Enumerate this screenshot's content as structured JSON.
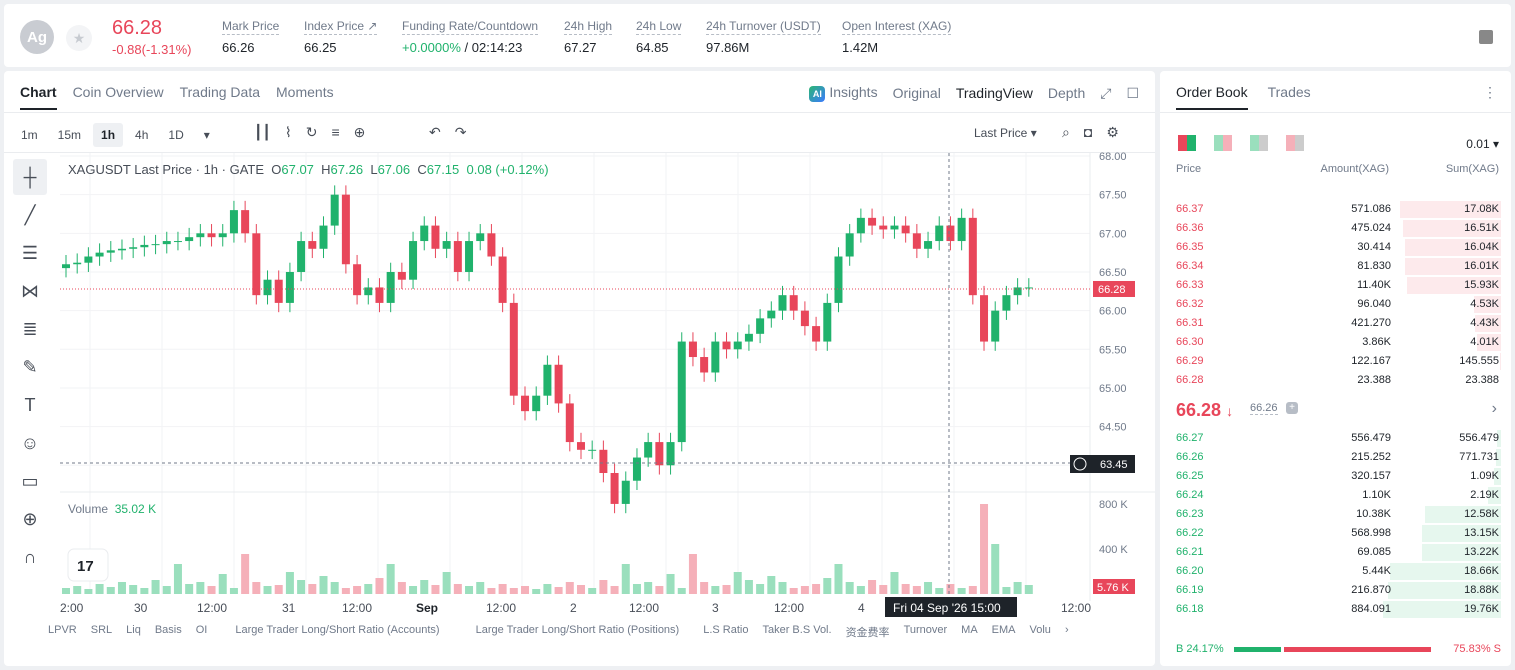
{
  "header": {
    "symbol_initials": "Ag",
    "last_price": "66.28",
    "change": "-0.88(-1.31%)",
    "stats": [
      {
        "label": "Mark Price",
        "value": "66.26"
      },
      {
        "label": "Index Price ↗",
        "value": "66.25"
      },
      {
        "label": "Funding Rate/Countdown",
        "value_green": "+0.0000%",
        "value": " / 02:14:23"
      },
      {
        "label": "24h High",
        "value": "67.27"
      },
      {
        "label": "24h Low",
        "value": "64.85"
      },
      {
        "label": "24h Turnover (USDT)",
        "value": "97.86M"
      },
      {
        "label": "Open Interest (XAG)",
        "value": "1.42M"
      }
    ]
  },
  "tabs": [
    "Chart",
    "Coin Overview",
    "Trading Data",
    "Moments"
  ],
  "views": {
    "insights": "Insights",
    "original": "Original",
    "tradingview": "TradingView",
    "depth": "Depth"
  },
  "timeframes": [
    "1m",
    "15m",
    "1h",
    "4h",
    "1D"
  ],
  "last_price_select": "Last Price",
  "legend": {
    "title": "XAGUSDT Last Price · 1h · GATE",
    "o": "67.07",
    "h": "67.26",
    "l": "67.06",
    "c": "67.15",
    "chg": "0.08 (+0.12%)"
  },
  "volume": {
    "label": "Volume",
    "value": "35.02 K"
  },
  "price_axis": [
    "68.00",
    "67.50",
    "67.00",
    "66.50",
    "66.00",
    "65.50",
    "65.00",
    "64.50",
    "64.00"
  ],
  "price_tag": "66.28",
  "low_tag": "63.45",
  "vol_axis": [
    "800 K",
    "400 K"
  ],
  "vol_tag": "5.76 K",
  "time_axis": [
    "2:00",
    "30",
    "12:00",
    "31",
    "12:00",
    "Sep",
    "12:00",
    "2",
    "12:00",
    "3",
    "12:00",
    "4",
    "12:00"
  ],
  "crosshair_time": "Fri 04 Sep '26   15:00",
  "indicators": [
    "LPVR",
    "SRL",
    "Liq",
    "Basis",
    "OI",
    "Large Trader Long/Short Ratio (Accounts)",
    "Large Trader Long/Short Ratio (Positions)",
    "L.S Ratio",
    "Taker B.S Vol.",
    "资金费率",
    "Turnover",
    "MA",
    "EMA",
    "Volu"
  ],
  "orderbook": {
    "tabs": [
      "Order Book",
      "Trades"
    ],
    "tick": "0.01",
    "headers": [
      "Price",
      "Amount(XAG)",
      "Sum(XAG)"
    ],
    "asks": [
      {
        "p": "66.37",
        "a": "571.086",
        "s": "17.08K",
        "d": 0.86
      },
      {
        "p": "66.36",
        "a": "475.024",
        "s": "16.51K",
        "d": 0.83
      },
      {
        "p": "66.35",
        "a": "30.414",
        "s": "16.04K",
        "d": 0.81
      },
      {
        "p": "66.34",
        "a": "81.830",
        "s": "16.01K",
        "d": 0.81
      },
      {
        "p": "66.33",
        "a": "11.40K",
        "s": "15.93K",
        "d": 0.8
      },
      {
        "p": "66.32",
        "a": "96.040",
        "s": "4.53K",
        "d": 0.23
      },
      {
        "p": "66.31",
        "a": "421.270",
        "s": "4.43K",
        "d": 0.22
      },
      {
        "p": "66.30",
        "a": "3.86K",
        "s": "4.01K",
        "d": 0.2
      },
      {
        "p": "66.29",
        "a": "122.167",
        "s": "145.555",
        "d": 0.01
      },
      {
        "p": "66.28",
        "a": "23.388",
        "s": "23.388",
        "d": 0.0
      }
    ],
    "mid_price": "66.28",
    "mark": "66.26",
    "bids": [
      {
        "p": "66.27",
        "a": "556.479",
        "s": "556.479",
        "d": 0.03
      },
      {
        "p": "66.26",
        "a": "215.252",
        "s": "771.731",
        "d": 0.04
      },
      {
        "p": "66.25",
        "a": "320.157",
        "s": "1.09K",
        "d": 0.06
      },
      {
        "p": "66.24",
        "a": "1.10K",
        "s": "2.19K",
        "d": 0.11
      },
      {
        "p": "66.23",
        "a": "10.38K",
        "s": "12.58K",
        "d": 0.64
      },
      {
        "p": "66.22",
        "a": "568.998",
        "s": "13.15K",
        "d": 0.67
      },
      {
        "p": "66.21",
        "a": "69.085",
        "s": "13.22K",
        "d": 0.67
      },
      {
        "p": "66.20",
        "a": "5.44K",
        "s": "18.66K",
        "d": 0.94
      },
      {
        "p": "66.19",
        "a": "216.870",
        "s": "18.88K",
        "d": 0.96
      },
      {
        "p": "66.18",
        "a": "884.091",
        "s": "19.76K",
        "d": 1.0
      }
    ],
    "buy_pct": "B 24.17%",
    "sell_pct": "75.83% S",
    "buy_ratio": 0.2417
  },
  "colors": {
    "up": "#20b26c",
    "down": "#e8465a"
  }
}
